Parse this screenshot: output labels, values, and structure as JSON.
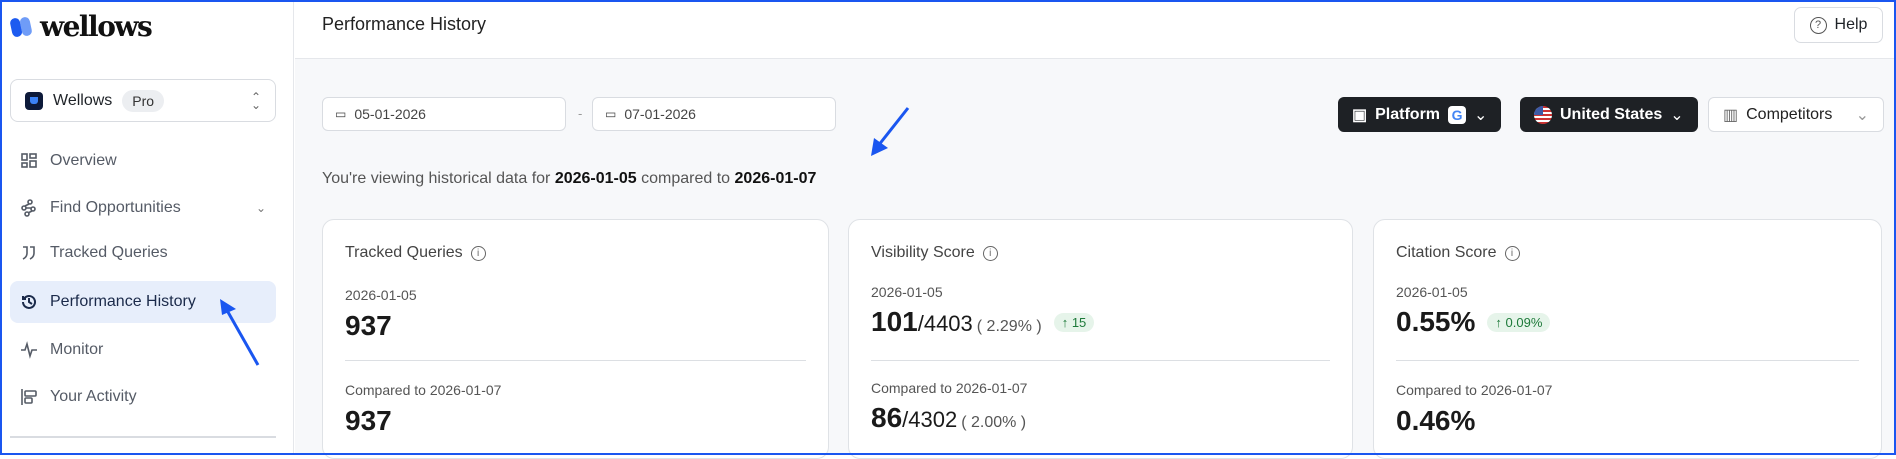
{
  "brand": {
    "name": "wellows"
  },
  "workspace": {
    "name": "Wellows",
    "plan": "Pro"
  },
  "sidebar": {
    "items": [
      {
        "label": "Overview",
        "icon": "grid-icon"
      },
      {
        "label": "Find Opportunities",
        "icon": "nodes-icon"
      },
      {
        "label": "Tracked Queries",
        "icon": "quote-icon"
      },
      {
        "label": "Performance History",
        "icon": "history-icon",
        "active": true
      },
      {
        "label": "Monitor",
        "icon": "activity-icon"
      },
      {
        "label": "Your Activity",
        "icon": "activity-list-icon"
      }
    ]
  },
  "header": {
    "title": "Performance History",
    "help": "Help"
  },
  "filters": {
    "start_date": "05-01-2026",
    "end_date": "07-01-2026",
    "separator": "-",
    "platform": "Platform",
    "country": "United States",
    "competitors": "Competitors"
  },
  "history": {
    "prefix": "You're viewing historical data for",
    "date_a": "2026-01-05",
    "mid": "compared to",
    "date_b": "2026-01-07"
  },
  "cards": [
    {
      "title": "Tracked Queries",
      "date_label": "2026-01-05",
      "value": "937",
      "compare_label": "Compared to 2026-01-07",
      "compare_value": "937"
    },
    {
      "title": "Visibility Score",
      "date_label": "2026-01-05",
      "value": "101",
      "denominator": "/4403",
      "pct": "( 2.29% )",
      "change": "↑ 15",
      "compare_label": "Compared to 2026-01-07",
      "compare_value": "86",
      "compare_denominator": "/4302",
      "compare_pct": "( 2.00% )"
    },
    {
      "title": "Citation Score",
      "date_label": "2026-01-05",
      "value": "0.55%",
      "change": "↑ 0.09%",
      "compare_label": "Compared to 2026-01-07",
      "compare_value": "0.46%"
    }
  ],
  "colors": {
    "accent": "#1a56f0",
    "active_bg": "#e7eefb",
    "positive": "#1e7a3a"
  }
}
